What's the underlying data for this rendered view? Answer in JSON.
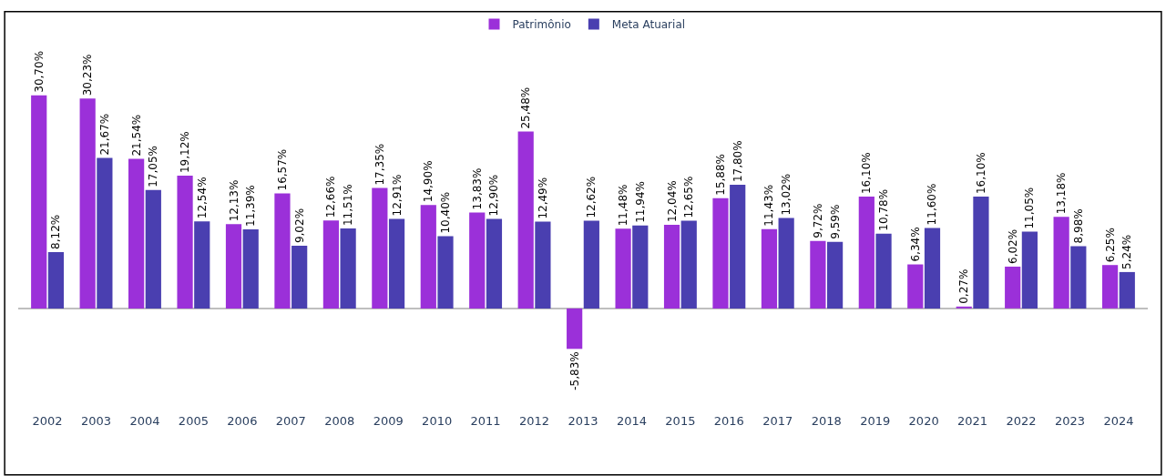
{
  "chart_data": {
    "type": "bar",
    "categories": [
      "2002",
      "2003",
      "2004",
      "2005",
      "2006",
      "2007",
      "2008",
      "2009",
      "2010",
      "2011",
      "2012",
      "2013",
      "2014",
      "2015",
      "2016",
      "2017",
      "2018",
      "2019",
      "2020",
      "2021",
      "2022",
      "2023",
      "2024"
    ],
    "series": [
      {
        "name": "Patrimônio",
        "color": "#9b30d9",
        "values": [
          30.7,
          30.23,
          21.54,
          19.12,
          12.13,
          16.57,
          12.66,
          17.35,
          14.9,
          13.83,
          25.48,
          -5.83,
          11.48,
          12.04,
          15.88,
          11.43,
          9.72,
          16.1,
          6.34,
          0.27,
          6.02,
          13.18,
          6.25
        ],
        "value_labels": [
          "30,70%",
          "30,23%",
          "21,54%",
          "19,12%",
          "12,13%",
          "16,57%",
          "12,66%",
          "17,35%",
          "14,90%",
          "13,83%",
          "25,48%",
          "-5,83%",
          "11,48%",
          "12,04%",
          "15,88%",
          "11,43%",
          "9,72%",
          "16,10%",
          "6,34%",
          "0,27%",
          "6,02%",
          "13,18%",
          "6,25%"
        ]
      },
      {
        "name": "Meta Atuarial",
        "color": "#4a3fb0",
        "values": [
          8.12,
          21.67,
          17.05,
          12.54,
          11.39,
          9.02,
          11.51,
          12.91,
          10.4,
          12.9,
          12.49,
          12.62,
          11.94,
          12.65,
          17.8,
          13.02,
          9.59,
          10.78,
          11.6,
          16.1,
          11.05,
          8.98,
          5.24
        ],
        "value_labels": [
          "8,12%",
          "21,67%",
          "17,05%",
          "12,54%",
          "11,39%",
          "9,02%",
          "11,51%",
          "12,91%",
          "10,40%",
          "12,90%",
          "12,49%",
          "12,62%",
          "11,94%",
          "12,65%",
          "17,80%",
          "13,02%",
          "9,59%",
          "10,78%",
          "11,60%",
          "16,10%",
          "11,05%",
          "8,98%",
          "5,24%"
        ]
      }
    ],
    "legend": "top"
  }
}
